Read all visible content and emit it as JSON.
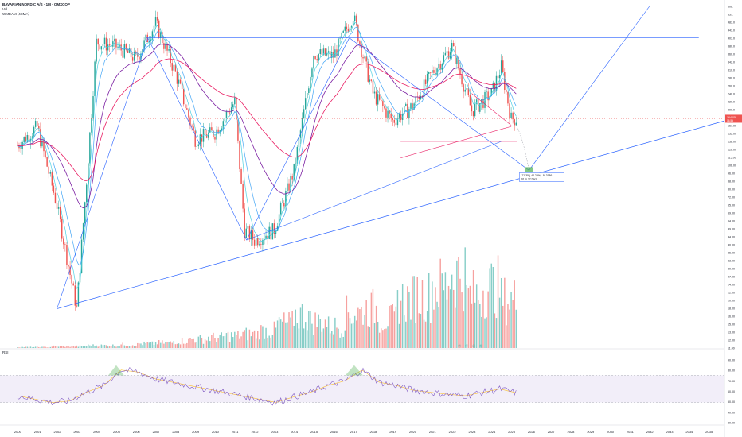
{
  "header": {
    "title": "BAVARIAN NORDIC A/S · 1M · OMXCOP",
    "line2": "Vol",
    "line3": "WMEAM [4EMA]",
    "rsi_label": "RSI"
  },
  "chart_data": [
    {
      "type": "candlestick",
      "title": "BAVARIAN NORDIC A/S · 1M · OMXCOP",
      "log_scale": true,
      "grid": false,
      "ylim": [
        11.4,
        606
      ],
      "y_ticks": [
        "606.",
        "557.",
        "483.0",
        "443.0",
        "403.0",
        "380.0",
        "360.0",
        "342.0",
        "310.0",
        "280.0",
        "260.0",
        "240.0",
        "220.0",
        "200.0",
        "184.00",
        "167.00",
        "152.00",
        "138.00",
        "126.00",
        "115.00",
        "106.00",
        "96.00",
        "88.00",
        "80.00",
        "72.00",
        "65.00",
        "59.00",
        "54.00",
        "49.00",
        "44.00",
        "40.00",
        "36.00",
        "33.00",
        "30.00",
        "27.00",
        "24.00",
        "22.00",
        "20.00",
        "18.00",
        "16.00",
        "15.00",
        "13.00",
        "12.00",
        "11.00"
      ],
      "x_ticks": [
        "2000",
        "2001",
        "2002",
        "2003",
        "2004",
        "2005",
        "2006",
        "2007",
        "2008",
        "2009",
        "2010",
        "2011",
        "2012",
        "2013",
        "2014",
        "2015",
        "2016",
        "2017",
        "2018",
        "2019",
        "2020",
        "2021",
        "2022",
        "2023",
        "2024",
        "2025",
        "2026",
        "2027",
        "2028",
        "2029",
        "2030",
        "2031",
        "2032",
        "2033",
        "2034",
        "2035"
      ],
      "last_price_label": "164.05",
      "last_price_sub": "16.5d",
      "measure_label": "-71.35 (-44.23%) -9, 3186",
      "measure_sub": "16 m   32 bars",
      "waves": [
        "Ⓐ",
        "Ⓑ",
        "Ⓒ",
        "Ⓓ"
      ],
      "colors": {
        "up": "#26a69a",
        "down": "#ef5350",
        "trend": "#2962ff",
        "ema_short": "#4dd0e1",
        "ema_mid": "#42a5f5",
        "ema_long": "#7b1fa2",
        "ema_longest": "#e91e63",
        "rsi": "#7e57c2",
        "rsi_ma": "#fbc02d"
      },
      "series": [
        {
          "name": "close",
          "x": [
            2000.0,
            2001.0,
            2002.0,
            2003.0,
            2003.5,
            2004.0,
            2005.0,
            2006.0,
            2007.0,
            2008.0,
            2009.0,
            2010.0,
            2011.0,
            2011.5,
            2012.0,
            2013.0,
            2014.0,
            2015.0,
            2016.0,
            2017.0,
            2017.5,
            2018.0,
            2019.0,
            2020.0,
            2021.0,
            2022.0,
            2023.0,
            2024.0,
            2024.5,
            2025.0
          ],
          "values": [
            120,
            150,
            60,
            18,
            80,
            400,
            380,
            330,
            500,
            280,
            130,
            140,
            200,
            45,
            40,
            45,
            90,
            350,
            340,
            550,
            340,
            220,
            160,
            190,
            280,
            380,
            180,
            220,
            300,
            164
          ]
        }
      ]
    },
    {
      "type": "bar",
      "title": "Vol",
      "values": [
        1,
        1,
        2,
        2,
        3,
        3,
        4,
        5,
        6,
        8,
        10,
        12,
        14,
        16,
        20,
        28,
        38,
        30,
        25,
        40,
        45,
        33,
        55,
        60,
        70,
        85,
        60,
        70,
        55,
        30
      ]
    },
    {
      "type": "line",
      "title": "RSI",
      "ylim": [
        0,
        100
      ],
      "y_ticks": [
        "90.00",
        "80.00",
        "70.00",
        "60.00",
        "50.00",
        "40.00",
        "30.00"
      ],
      "values": [
        40,
        35,
        30,
        32,
        45,
        55,
        78,
        75,
        65,
        60,
        55,
        50,
        45,
        40,
        35,
        30,
        38,
        45,
        55,
        62,
        78,
        60,
        55,
        48,
        45,
        42,
        40,
        45,
        50,
        44
      ]
    }
  ]
}
